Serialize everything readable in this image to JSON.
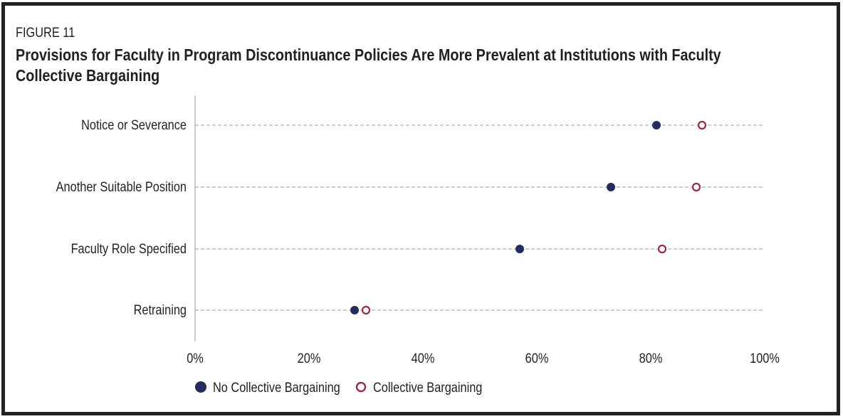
{
  "figure_label": "FIGURE 11",
  "chart_data": {
    "type": "scatter",
    "title": "Provisions for Faculty in Program Discontinuance Policies Are More Prevalent at Institutions with Faculty Collective Bargaining",
    "categories": [
      "Notice or Severance",
      "Another Suitable Position",
      "Faculty Role Specified",
      "Retraining"
    ],
    "series": [
      {
        "name": "No Collective Bargaining",
        "values": [
          81,
          73,
          57,
          28
        ],
        "color": "#232c5f",
        "marker": "filled-circle"
      },
      {
        "name": "Collective Bargaining",
        "values": [
          89,
          88,
          82,
          30
        ],
        "color": "#9e2a3f",
        "marker": "open-circle"
      }
    ],
    "x_ticks": [
      "0%",
      "20%",
      "40%",
      "60%",
      "80%",
      "100%"
    ],
    "xlim": [
      0,
      100
    ],
    "grid": "dashed horizontal per category",
    "legend_position": "bottom-left"
  }
}
